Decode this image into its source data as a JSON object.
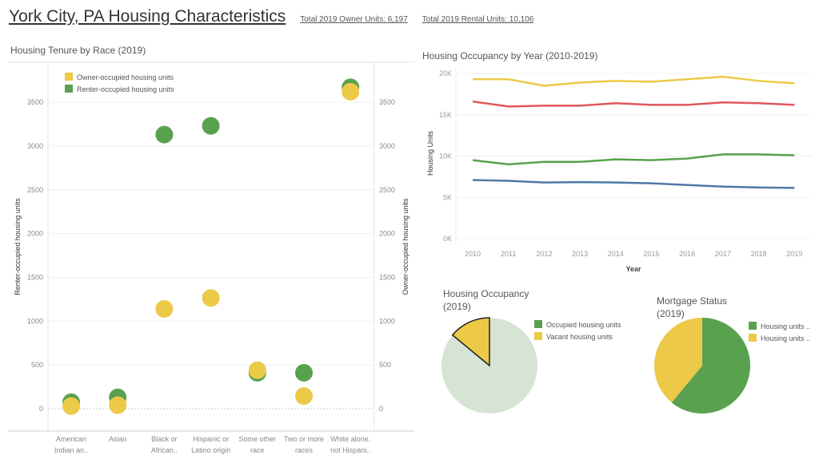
{
  "header": {
    "title": "York City, PA Housing Characteristics",
    "owner_units": "Total 2019 Owner Units: 6,197",
    "rental_units": "Total 2019 Rental Units: 10,106"
  },
  "colors": {
    "owner": "#edc948",
    "renter": "#59a14f",
    "red": "#e15759",
    "blue": "#4e79a7",
    "faded_green": "#d6e4d4"
  },
  "chart_data": [
    {
      "type": "scatter",
      "title": "Housing Tenure by Race (2019)",
      "categories": [
        "American Indian an..",
        "Asian",
        "Black or African..",
        "Hispanic or Latino origin",
        "Some other race",
        "Two or more races",
        "White alone, not Hispani.."
      ],
      "category_lines": [
        [
          "American",
          "Indian an.."
        ],
        [
          "Asian",
          ""
        ],
        [
          "Black or",
          "African.."
        ],
        [
          "Hispanic or",
          "Latino origin"
        ],
        [
          "Some other",
          "race"
        ],
        [
          "Two or more",
          "races"
        ],
        [
          "White alone,",
          "not Hispani.."
        ]
      ],
      "series": [
        {
          "name": "Renter-occupied housing units",
          "values": [
            75,
            130,
            3130,
            3230,
            410,
            410,
            3670
          ]
        },
        {
          "name": "Owner-occupied housing units",
          "values": [
            30,
            40,
            1140,
            1265,
            440,
            145,
            3620
          ]
        }
      ],
      "ylabel_left": "Renter-occupied housing units",
      "ylabel_right": "Owner-occupied housing units",
      "yticks": [
        0,
        500,
        1000,
        1500,
        2000,
        2500,
        3000,
        3500
      ],
      "ylim": [
        -250,
        3900
      ],
      "legend": "top-left",
      "grid": true
    },
    {
      "type": "line",
      "title": "Housing Occupancy by Year (2010-2019)",
      "xlabel": "Year",
      "ylabel": "Housing Units",
      "x": [
        2010,
        2011,
        2012,
        2013,
        2014,
        2015,
        2016,
        2017,
        2018,
        2019
      ],
      "yticks": [
        "0K",
        "5K",
        "10K",
        "15K",
        "20K"
      ],
      "ylim": [
        0,
        20000
      ],
      "grid": true,
      "series": [
        {
          "color": "#edc948",
          "values": [
            19300,
            19300,
            18500,
            18900,
            19100,
            19000,
            19300,
            19600,
            19100,
            18800
          ]
        },
        {
          "color": "#e15759",
          "values": [
            16600,
            16000,
            16100,
            16100,
            16400,
            16200,
            16200,
            16500,
            16400,
            16200
          ]
        },
        {
          "color": "#59a14f",
          "values": [
            9500,
            9000,
            9300,
            9300,
            9600,
            9500,
            9700,
            10200,
            10200,
            10100
          ]
        },
        {
          "color": "#4e79a7",
          "values": [
            7100,
            7000,
            6800,
            6850,
            6800,
            6700,
            6500,
            6300,
            6200,
            6150
          ]
        }
      ]
    },
    {
      "type": "pie",
      "title_lines": [
        "Housing Occupancy",
        "(2019)"
      ],
      "slices": [
        {
          "name": "Occupied housing units",
          "value": 86,
          "color": "#59a14f"
        },
        {
          "name": "Vacant housing units",
          "value": 14,
          "color": "#edc948"
        }
      ],
      "highlighted": "Vacant housing units",
      "legend": "right"
    },
    {
      "type": "pie",
      "title_lines": [
        "Mortgage Status",
        "(2019)"
      ],
      "slices": [
        {
          "name": "Housing units ..",
          "value": 61,
          "color": "#59a14f"
        },
        {
          "name": "Housing units ..",
          "value": 39,
          "color": "#edc948"
        }
      ],
      "legend": "right"
    }
  ]
}
